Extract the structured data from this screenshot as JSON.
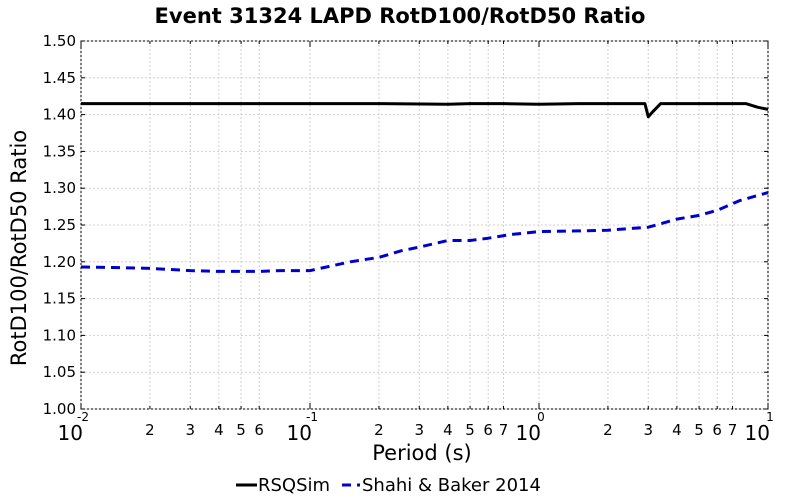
{
  "chart_data": {
    "type": "line",
    "title": "Event 31324 LAPD RotD100/RotD50 Ratio",
    "xlabel": "Period (s)",
    "ylabel": "RotD100/RotD50 Ratio",
    "xscale": "log",
    "xlim": [
      0.01,
      10
    ],
    "ylim": [
      1.0,
      1.5
    ],
    "yticks": [
      "1.00",
      "1.05",
      "1.10",
      "1.15",
      "1.20",
      "1.25",
      "1.30",
      "1.35",
      "1.40",
      "1.45",
      "1.50"
    ],
    "xticks_major": [
      {
        "value": 0.01,
        "base": "10",
        "exp": "-2"
      },
      {
        "value": 0.1,
        "base": "10",
        "exp": "-1"
      },
      {
        "value": 1,
        "base": "10",
        "exp": "0"
      },
      {
        "value": 10,
        "base": "10",
        "exp": "1"
      }
    ],
    "xticks_minor": [
      {
        "value": 0.02,
        "label": "2"
      },
      {
        "value": 0.03,
        "label": "3"
      },
      {
        "value": 0.04,
        "label": "4"
      },
      {
        "value": 0.05,
        "label": "5"
      },
      {
        "value": 0.06,
        "label": "6"
      },
      {
        "value": 0.2,
        "label": "2"
      },
      {
        "value": 0.3,
        "label": "3"
      },
      {
        "value": 0.4,
        "label": "4"
      },
      {
        "value": 0.5,
        "label": "5"
      },
      {
        "value": 0.6,
        "label": "6"
      },
      {
        "value": 0.7,
        "label": "7"
      },
      {
        "value": 2,
        "label": "2"
      },
      {
        "value": 3,
        "label": "3"
      },
      {
        "value": 4,
        "label": "4"
      },
      {
        "value": 5,
        "label": "5"
      },
      {
        "value": 6,
        "label": "6"
      },
      {
        "value": 7,
        "label": "7"
      }
    ],
    "grid": true,
    "legend_position": "bottom",
    "series": [
      {
        "name": "RSQSim",
        "color": "#000000",
        "style": "solid",
        "x": [
          0.01,
          0.02,
          0.05,
          0.1,
          0.2,
          0.4,
          0.5,
          0.7,
          1.0,
          1.5,
          2.0,
          2.5,
          2.9,
          3.0,
          3.1,
          3.4,
          4.0,
          5.0,
          6.0,
          8.0,
          9.0,
          10.0
        ],
        "y": [
          1.415,
          1.415,
          1.415,
          1.415,
          1.415,
          1.414,
          1.415,
          1.415,
          1.414,
          1.415,
          1.415,
          1.415,
          1.415,
          1.397,
          1.402,
          1.415,
          1.415,
          1.415,
          1.415,
          1.415,
          1.41,
          1.407
        ]
      },
      {
        "name": "Shahi & Baker 2014",
        "color": "#0000cc",
        "style": "dashed",
        "x": [
          0.01,
          0.015,
          0.02,
          0.03,
          0.04,
          0.05,
          0.06,
          0.075,
          0.1,
          0.15,
          0.2,
          0.25,
          0.3,
          0.4,
          0.5,
          0.6,
          0.75,
          1.0,
          1.5,
          2.0,
          3.0,
          4.0,
          5.0,
          6.0,
          7.5,
          10.0
        ],
        "y": [
          1.193,
          1.192,
          1.191,
          1.188,
          1.187,
          1.187,
          1.187,
          1.188,
          1.188,
          1.2,
          1.206,
          1.215,
          1.22,
          1.229,
          1.229,
          1.232,
          1.237,
          1.241,
          1.242,
          1.243,
          1.247,
          1.258,
          1.263,
          1.27,
          1.283,
          1.294
        ]
      }
    ]
  }
}
